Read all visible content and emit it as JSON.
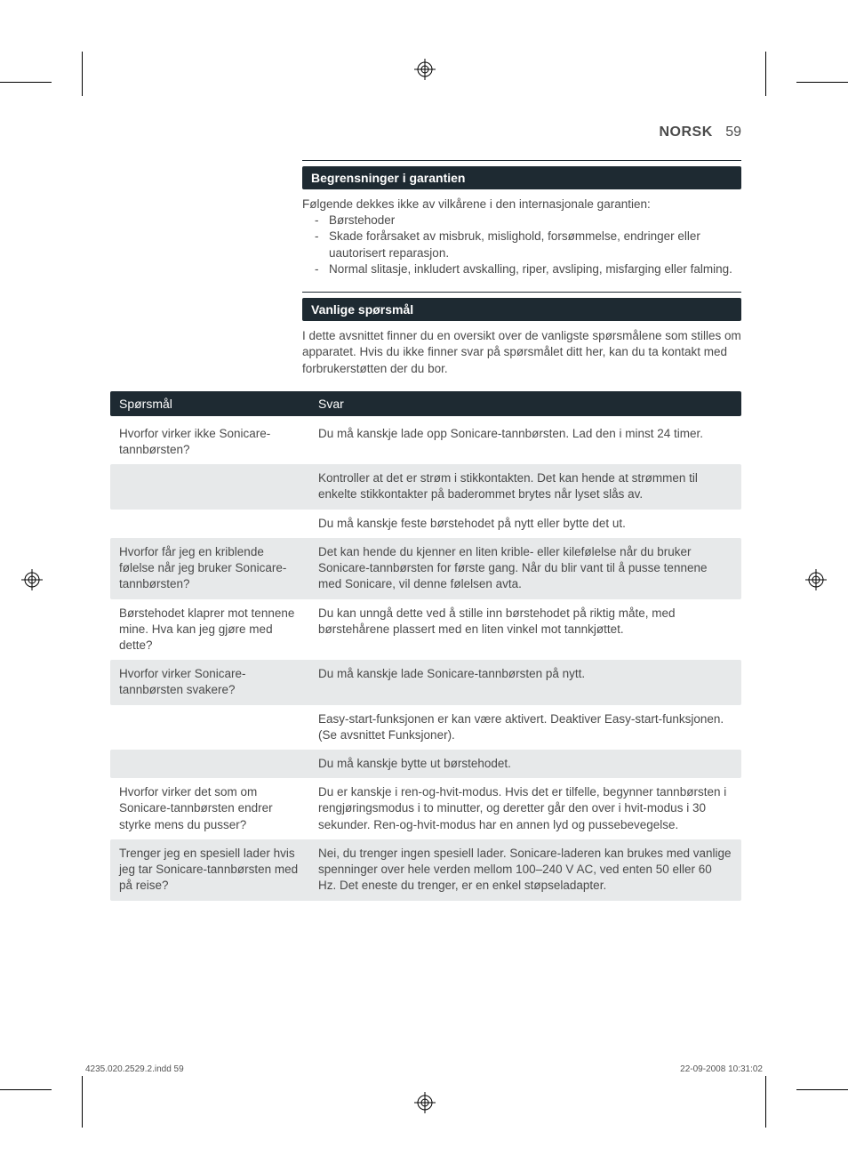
{
  "header": {
    "language": "NORSK",
    "page_number": "59"
  },
  "sections": {
    "warranty": {
      "title": "Begrensninger i garantien",
      "intro": "Følgende dekkes ikke av vilkårene i den internasjonale garantien:",
      "items": [
        "Børstehoder",
        "Skade forårsaket av misbruk, mislighold, forsømmelse, endringer eller uautorisert reparasjon.",
        "Normal slitasje, inkludert avskalling, riper, avsliping, misfarging eller falming."
      ]
    },
    "faq": {
      "title": "Vanlige spørsmål",
      "intro": "I dette avsnittet finner du en oversikt over de vanligste spørsmålene som stilles om apparatet. Hvis du ikke finner svar på spørsmålet ditt her, kan du ta kontakt med forbrukerstøtten der du bor."
    }
  },
  "qa": {
    "head_q": "Spørsmål",
    "head_a": "Svar",
    "rows": [
      {
        "q": "Hvorfor virker ikke Sonicare-tannbørsten?",
        "a": "Du må kanskje lade opp Sonicare-tannbørsten. Lad den i minst 24 timer.",
        "shade": false
      },
      {
        "q": "",
        "a": "Kontroller at det er strøm i stikkontakten. Det kan hende at strømmen til enkelte stikkontakter på baderommet brytes når lyset slås av.",
        "shade": true
      },
      {
        "q": "",
        "a": "Du må kanskje feste børstehodet på nytt eller bytte det ut.",
        "shade": false
      },
      {
        "q": "Hvorfor får jeg en kriblende følelse når jeg bruker Sonicare-tannbørsten?",
        "a": "Det kan hende du kjenner en liten krible- eller kilefølelse når du bruker Sonicare-tannbørsten for første gang. Når du blir vant til å pusse tennene med Sonicare, vil denne følelsen avta.",
        "shade": true
      },
      {
        "q": "Børstehodet klaprer mot tennene mine. Hva kan jeg gjøre med dette?",
        "a": "Du kan unngå dette ved å stille inn børstehodet på riktig måte, med børstehårene plassert med en liten vinkel mot tannkjøttet.",
        "shade": false
      },
      {
        "q": "Hvorfor virker Sonicare-tannbørsten svakere?",
        "a": "Du må kanskje lade Sonicare-tannbørsten på nytt.",
        "shade": true
      },
      {
        "q": "",
        "a": "Easy-start-funksjonen er kan være aktivert. Deaktiver Easy-start-funksjonen. (Se avsnittet Funksjoner).",
        "shade": false
      },
      {
        "q": "",
        "a": "Du må kanskje bytte ut børstehodet.",
        "shade": true
      },
      {
        "q": "Hvorfor virker det som om Sonicare-tannbørsten endrer styrke mens du pusser?",
        "a": "Du er kanskje i ren-og-hvit-modus. Hvis det er tilfelle, begynner tannbørsten i rengjøringsmodus i to minutter, og deretter går den over i hvit-modus i 30 sekunder. Ren-og-hvit-modus har en annen lyd og pussebevegelse.",
        "shade": false
      },
      {
        "q": "Trenger jeg en spesiell lader hvis jeg tar Sonicare-tannbørsten med på reise?",
        "a": "Nei, du trenger ingen spesiell lader. Sonicare-laderen kan brukes med vanlige spenninger over hele verden mellom 100–240 V AC, ved enten 50 eller 60 Hz. Det eneste du trenger, er en enkel støpseladapter.",
        "shade": true
      }
    ]
  },
  "footer": {
    "left": "4235.020.2529.2.indd   59",
    "right": "22-09-2008   10:31:02"
  },
  "colors": {
    "bar_bg": "#1e2a32",
    "shade_bg": "#e7e9ea",
    "text": "#4a4a4a"
  }
}
